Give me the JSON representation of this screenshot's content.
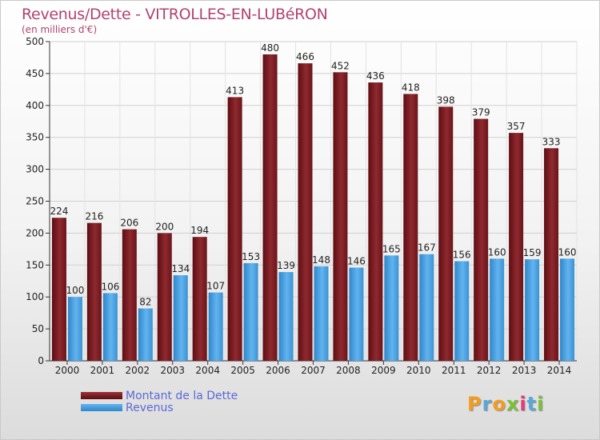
{
  "title": "Revenus/Dette - VITROLLES-EN-LUBéRON",
  "subtitle": "(en milliers d'€)",
  "logo": {
    "letters": [
      "P",
      "r",
      "o",
      "x",
      "i",
      "t",
      "i"
    ],
    "colors": [
      "#f39c1e",
      "#5aa7d8",
      "#f39c1e",
      "#7bbf3a",
      "#e6397a",
      "#5aa7d8",
      "#7bbf3a"
    ]
  },
  "colors": {
    "debt": "#7d1e22",
    "debt_light": "#9a3338",
    "revenue": "#3b95d6",
    "revenue_light": "#5cb0ec",
    "title": "#b0446f",
    "legend_text": "#5a68d8"
  },
  "chart_data": {
    "type": "bar",
    "categories": [
      "2000",
      "2001",
      "2002",
      "2003",
      "2004",
      "2005",
      "2006",
      "2007",
      "2008",
      "2009",
      "2010",
      "2011",
      "2012",
      "2013",
      "2014"
    ],
    "series": [
      {
        "name": "Montant de la Dette",
        "values": [
          224,
          216,
          206,
          200,
          194,
          413,
          480,
          466,
          452,
          436,
          418,
          398,
          379,
          357,
          333
        ]
      },
      {
        "name": "Revenus",
        "values": [
          100,
          106,
          82,
          134,
          107,
          153,
          139,
          148,
          146,
          165,
          167,
          156,
          160,
          159,
          160
        ]
      }
    ],
    "ylim": [
      0,
      500
    ],
    "yticks": [
      0,
      50,
      100,
      150,
      200,
      250,
      300,
      350,
      400,
      450,
      500
    ],
    "grid": true,
    "legend": "bottom-left"
  }
}
